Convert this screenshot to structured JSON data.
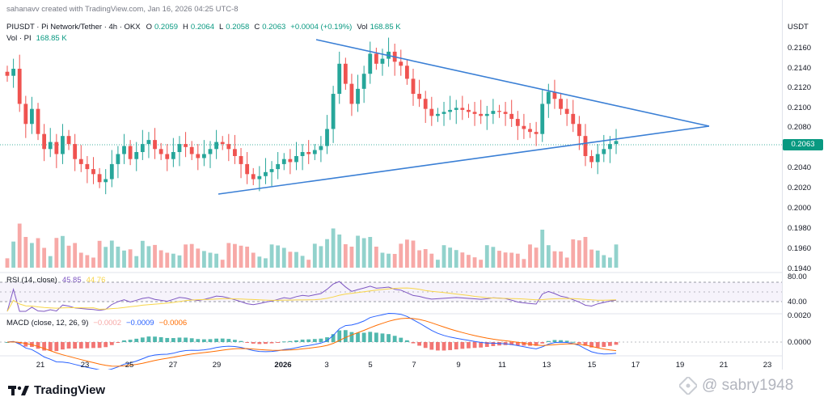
{
  "header": {
    "created_by": "sahanavv created with TradingView.com, Jan 16, 2026 04:25 UTC-8",
    "symbol": "PIUSDT · Pi Network/Tether · 4h · OKX",
    "o_label": "O",
    "o_value": "0.2059",
    "h_label": "H",
    "h_value": "0.2064",
    "l_label": "L",
    "l_value": "0.2058",
    "c_label": "C",
    "c_value": "0.2063",
    "change": "+0.0004 (+0.19%)",
    "vol_label": "Vol",
    "vol_value": "168.85 K",
    "vol_pi_label": "Vol · PI",
    "vol_pi_value": "168.85 K"
  },
  "price_axis": {
    "currency": "USDT",
    "ticks": [
      "0.2160",
      "0.2140",
      "0.2120",
      "0.2100",
      "0.2080",
      "0.2060",
      "0.2040",
      "0.2020",
      "0.2000",
      "0.1980",
      "0.1960",
      "0.1940"
    ],
    "last_price": "0.2063"
  },
  "rsi": {
    "label": "RSI (14, close)",
    "value1": "45.85",
    "value2": "44.76",
    "ticks": [
      "80.00",
      "40.00"
    ]
  },
  "macd": {
    "label": "MACD (close, 12, 26, 9)",
    "hist": "−0.0002",
    "macd": "−0.0009",
    "signal": "−0.0006",
    "ticks": [
      "0.0020",
      "0.0000"
    ]
  },
  "time_axis": [
    "21",
    "23",
    "25",
    "27",
    "29",
    "2026",
    "3",
    "5",
    "7",
    "9",
    "11",
    "13",
    "15",
    "17",
    "19",
    "21",
    "23"
  ],
  "brand": "TradingView",
  "watermark": "@ sabry1948",
  "colors": {
    "up": "#26a69a",
    "down": "#ef5350",
    "trendline": "#3a7fd5",
    "rsi": "#7e57c2",
    "macd": "#2962ff",
    "signal": "#ff6d00"
  },
  "chart_data": {
    "type": "candlestick",
    "symbol": "PIUSDT",
    "interval": "4h",
    "ylim": [
      0.194,
      0.217
    ],
    "x_labels": [
      "21",
      "23",
      "25",
      "27",
      "29",
      "2026",
      "3",
      "5",
      "7",
      "9",
      "11",
      "13",
      "15",
      "17",
      "19",
      "21",
      "23"
    ],
    "candles_close": [
      0.2128,
      0.2135,
      0.21,
      0.208,
      0.2095,
      0.207,
      0.2055,
      0.2062,
      0.205,
      0.2068,
      0.206,
      0.2045,
      0.204,
      0.2035,
      0.203,
      0.2022,
      0.2025,
      0.204,
      0.205,
      0.2058,
      0.2045,
      0.2052,
      0.206,
      0.2064,
      0.2055,
      0.205,
      0.2045,
      0.2052,
      0.206,
      0.2057,
      0.205,
      0.2046,
      0.205,
      0.2055,
      0.2062,
      0.206,
      0.2055,
      0.2048,
      0.204,
      0.203,
      0.2025,
      0.2028,
      0.2032,
      0.2035,
      0.204,
      0.2045,
      0.2042,
      0.2048,
      0.2052,
      0.205,
      0.2054,
      0.2058,
      0.2075,
      0.211,
      0.214,
      0.212,
      0.21,
      0.2115,
      0.213,
      0.215,
      0.214,
      0.2145,
      0.2152,
      0.2142,
      0.2138,
      0.2125,
      0.211,
      0.2105,
      0.2095,
      0.2088,
      0.209,
      0.2092,
      0.2094,
      0.2096,
      0.2094,
      0.2092,
      0.209,
      0.2088,
      0.209,
      0.2093,
      0.2092,
      0.209,
      0.2085,
      0.2078,
      0.2075,
      0.2072,
      0.207,
      0.21,
      0.2112,
      0.2105,
      0.2095,
      0.209,
      0.208,
      0.2068,
      0.2048,
      0.2042,
      0.205,
      0.2055,
      0.206,
      0.2063
    ],
    "trendlines": [
      {
        "name": "",
        "from": [
          0.217,
          "2026-01-03"
        ],
        "to": [
          0.2082,
          "2026-01-20"
        ]
      },
      {
        "name": "",
        "from": [
          0.2012,
          "2025-12-29"
        ],
        "to": [
          0.2082,
          "2026-01-20"
        ]
      }
    ]
  }
}
